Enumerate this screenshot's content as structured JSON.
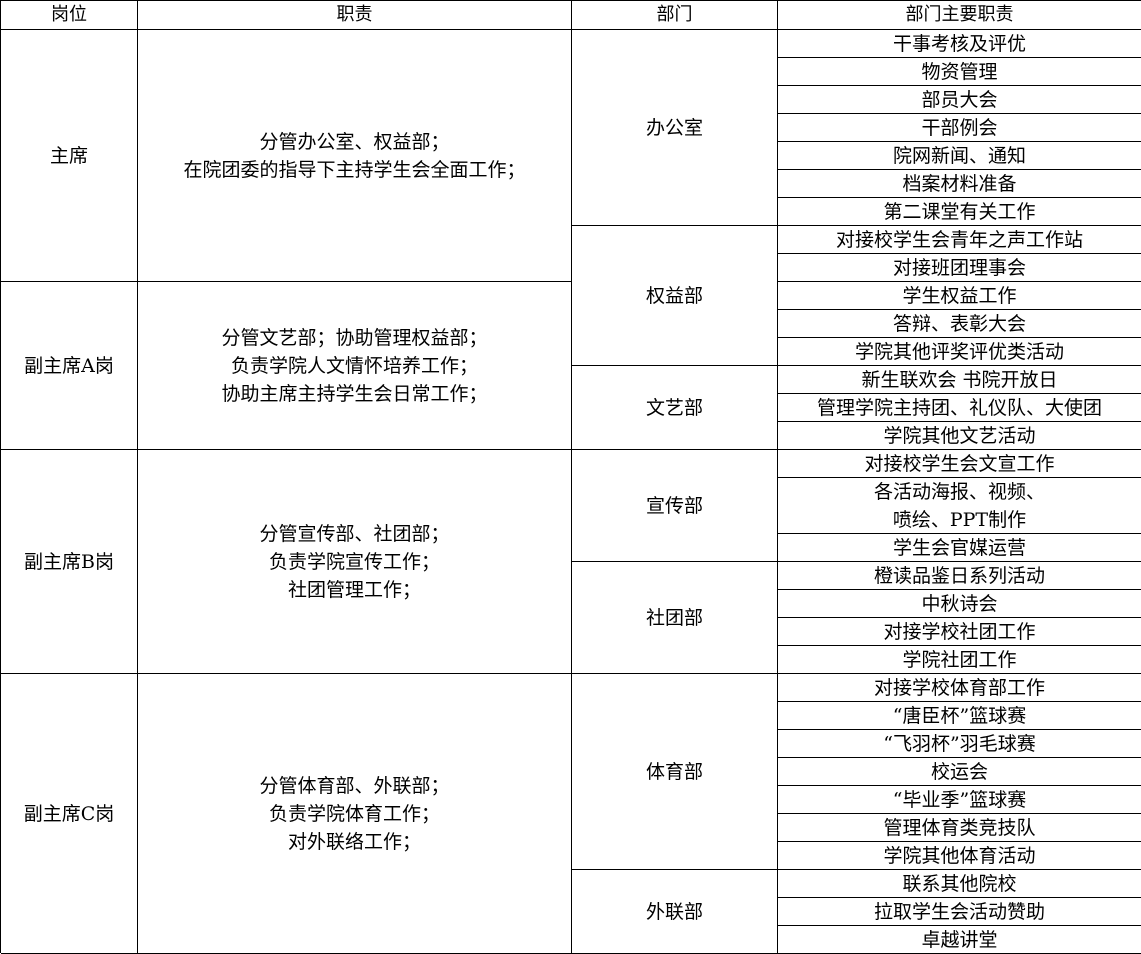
{
  "header": [
    "岗位",
    "职责",
    "部门",
    "部门主要职责"
  ],
  "positions": [
    {
      "title": "主席",
      "duty": "分管办公室、权益部；\n在院团委的指导下主持学生会全面工作；"
    },
    {
      "title": "副主席A岗",
      "duty": "分管文艺部；协助管理权益部；\n负责学院人文情怀培养工作；\n协助主席主持学生会日常工作；"
    },
    {
      "title": "副主席B岗",
      "duty": "分管宣传部、社团部；\n负责学院宣传工作；\n社团管理工作；"
    },
    {
      "title": "副主席C岗",
      "duty": "分管体育部、外联部；\n负责学院体育工作；\n对外联络工作；"
    }
  ],
  "departments": [
    {
      "name": "办公室",
      "tasks": [
        "干事考核及评优",
        "物资管理",
        "部员大会",
        "干部例会",
        "院网新闻、通知",
        "档案材料准备",
        "第二课堂有关工作"
      ]
    },
    {
      "name": "权益部",
      "tasks": [
        "对接校学生会青年之声工作站",
        "对接班团理事会",
        "学生权益工作",
        "答辩、表彰大会",
        "学院其他评奖评优类活动"
      ]
    },
    {
      "name": "文艺部",
      "tasks": [
        "新生联欢会 书院开放日",
        "管理学院主持团、礼仪队、大使团",
        "学院其他文艺活动"
      ]
    },
    {
      "name": "宣传部",
      "tasks": [
        "对接校学生会文宣工作",
        "各活动海报、视频、\n喷绘、PPT制作",
        "学生会官媒运营"
      ]
    },
    {
      "name": "社团部",
      "tasks": [
        "橙读品鉴日系列活动",
        "中秋诗会",
        "对接学校社团工作",
        "学院社团工作"
      ]
    },
    {
      "name": "体育部",
      "tasks": [
        "对接学校体育部工作",
        "“唐臣杯”篮球赛",
        "“飞羽杯”羽毛球赛",
        "校运会",
        "“毕业季”篮球赛",
        "管理体育类竞技队",
        "学院其他体育活动"
      ]
    },
    {
      "name": "外联部",
      "tasks": [
        "联系其他院校",
        "拉取学生会活动赞助",
        "卓越讲堂"
      ]
    }
  ]
}
